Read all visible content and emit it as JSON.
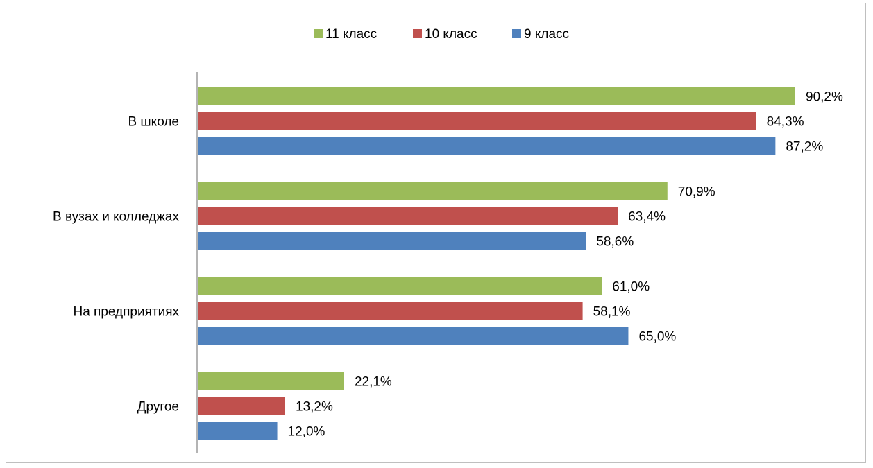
{
  "chart_data": {
    "type": "bar",
    "orientation": "horizontal",
    "categories": [
      "В школе",
      "В вузах и колледжах",
      "На предприятиях",
      "Другое"
    ],
    "series": [
      {
        "name": "11 класс",
        "color": "#9BBB59",
        "values": [
          90.2,
          70.9,
          61.0,
          22.1
        ],
        "labels": [
          "90,2%",
          "70,9%",
          "61,0%",
          "22,1%"
        ]
      },
      {
        "name": "10 класс",
        "color": "#C0504D",
        "values": [
          84.3,
          63.4,
          58.1,
          13.2
        ],
        "labels": [
          "84,3%",
          "63,4%",
          "58,1%",
          "13,2%"
        ]
      },
      {
        "name": "9 класс",
        "color": "#4F81BD",
        "values": [
          87.2,
          58.6,
          65.0,
          12.0
        ],
        "labels": [
          "87,2%",
          "58,6%",
          "65,0%",
          "12,0%"
        ]
      }
    ],
    "xlim": [
      0,
      100
    ],
    "grid": false,
    "legend_position": "top",
    "title": "",
    "xlabel": "",
    "ylabel": ""
  }
}
